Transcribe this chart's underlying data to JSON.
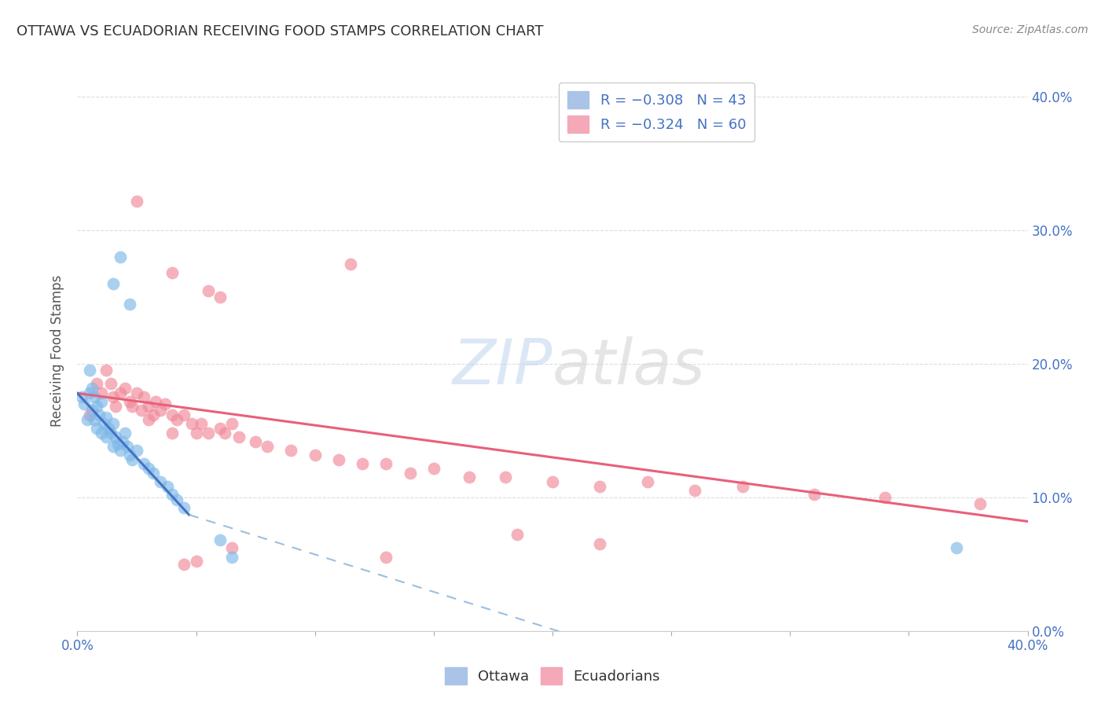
{
  "title": "OTTAWA VS ECUADORIAN RECEIVING FOOD STAMPS CORRELATION CHART",
  "source": "Source: ZipAtlas.com",
  "ylabel": "Receiving Food Stamps",
  "y_tick_labels": [
    "0.0%",
    "10.0%",
    "20.0%",
    "30.0%",
    "40.0%"
  ],
  "y_tick_values": [
    0.0,
    0.1,
    0.2,
    0.3,
    0.4
  ],
  "xlim": [
    0.0,
    0.4
  ],
  "ylim": [
    0.0,
    0.42
  ],
  "ottawa_color": "#7db8e8",
  "ecuadorian_color": "#f08898",
  "ottawa_scatter": [
    [
      0.002,
      0.175
    ],
    [
      0.003,
      0.17
    ],
    [
      0.004,
      0.158
    ],
    [
      0.005,
      0.195
    ],
    [
      0.005,
      0.178
    ],
    [
      0.006,
      0.182
    ],
    [
      0.006,
      0.165
    ],
    [
      0.007,
      0.175
    ],
    [
      0.007,
      0.158
    ],
    [
      0.008,
      0.168
    ],
    [
      0.008,
      0.152
    ],
    [
      0.009,
      0.162
    ],
    [
      0.01,
      0.172
    ],
    [
      0.01,
      0.148
    ],
    [
      0.011,
      0.155
    ],
    [
      0.012,
      0.16
    ],
    [
      0.012,
      0.145
    ],
    [
      0.013,
      0.152
    ],
    [
      0.014,
      0.148
    ],
    [
      0.015,
      0.155
    ],
    [
      0.015,
      0.138
    ],
    [
      0.016,
      0.145
    ],
    [
      0.017,
      0.14
    ],
    [
      0.018,
      0.135
    ],
    [
      0.019,
      0.142
    ],
    [
      0.02,
      0.148
    ],
    [
      0.021,
      0.138
    ],
    [
      0.022,
      0.132
    ],
    [
      0.023,
      0.128
    ],
    [
      0.025,
      0.135
    ],
    [
      0.028,
      0.125
    ],
    [
      0.03,
      0.122
    ],
    [
      0.032,
      0.118
    ],
    [
      0.035,
      0.112
    ],
    [
      0.038,
      0.108
    ],
    [
      0.04,
      0.102
    ],
    [
      0.042,
      0.098
    ],
    [
      0.045,
      0.092
    ],
    [
      0.015,
      0.26
    ],
    [
      0.018,
      0.28
    ],
    [
      0.022,
      0.245
    ],
    [
      0.06,
      0.068
    ],
    [
      0.065,
      0.055
    ],
    [
      0.37,
      0.062
    ]
  ],
  "ecuadorian_scatter": [
    [
      0.005,
      0.162
    ],
    [
      0.008,
      0.185
    ],
    [
      0.01,
      0.178
    ],
    [
      0.012,
      0.195
    ],
    [
      0.014,
      0.185
    ],
    [
      0.015,
      0.175
    ],
    [
      0.016,
      0.168
    ],
    [
      0.018,
      0.178
    ],
    [
      0.02,
      0.182
    ],
    [
      0.022,
      0.172
    ],
    [
      0.023,
      0.168
    ],
    [
      0.025,
      0.178
    ],
    [
      0.027,
      0.165
    ],
    [
      0.028,
      0.175
    ],
    [
      0.03,
      0.168
    ],
    [
      0.032,
      0.162
    ],
    [
      0.033,
      0.172
    ],
    [
      0.035,
      0.165
    ],
    [
      0.037,
      0.17
    ],
    [
      0.04,
      0.162
    ],
    [
      0.042,
      0.158
    ],
    [
      0.045,
      0.162
    ],
    [
      0.048,
      0.155
    ],
    [
      0.05,
      0.148
    ],
    [
      0.052,
      0.155
    ],
    [
      0.055,
      0.148
    ],
    [
      0.06,
      0.152
    ],
    [
      0.062,
      0.148
    ],
    [
      0.065,
      0.155
    ],
    [
      0.068,
      0.145
    ],
    [
      0.075,
      0.142
    ],
    [
      0.08,
      0.138
    ],
    [
      0.09,
      0.135
    ],
    [
      0.1,
      0.132
    ],
    [
      0.11,
      0.128
    ],
    [
      0.12,
      0.125
    ],
    [
      0.13,
      0.125
    ],
    [
      0.14,
      0.118
    ],
    [
      0.15,
      0.122
    ],
    [
      0.165,
      0.115
    ],
    [
      0.18,
      0.115
    ],
    [
      0.2,
      0.112
    ],
    [
      0.22,
      0.108
    ],
    [
      0.24,
      0.112
    ],
    [
      0.26,
      0.105
    ],
    [
      0.28,
      0.108
    ],
    [
      0.31,
      0.102
    ],
    [
      0.34,
      0.1
    ],
    [
      0.38,
      0.095
    ],
    [
      0.025,
      0.322
    ],
    [
      0.04,
      0.268
    ],
    [
      0.055,
      0.255
    ],
    [
      0.06,
      0.25
    ],
    [
      0.115,
      0.275
    ],
    [
      0.03,
      0.158
    ],
    [
      0.04,
      0.148
    ],
    [
      0.045,
      0.05
    ],
    [
      0.05,
      0.052
    ],
    [
      0.065,
      0.062
    ],
    [
      0.13,
      0.055
    ],
    [
      0.185,
      0.072
    ],
    [
      0.22,
      0.065
    ]
  ],
  "ottawa_line_solid": {
    "x": [
      0.0,
      0.047
    ],
    "y": [
      0.178,
      0.087
    ]
  },
  "ottawa_line_dash": {
    "x": [
      0.047,
      0.22
    ],
    "y": [
      0.087,
      -0.01
    ]
  },
  "ecuadorian_line": {
    "x": [
      0.0,
      0.4
    ],
    "y": [
      0.178,
      0.082
    ]
  },
  "background_color": "#ffffff",
  "grid_color": "#dddddd",
  "axis_color": "#4472c4",
  "title_color": "#333333"
}
